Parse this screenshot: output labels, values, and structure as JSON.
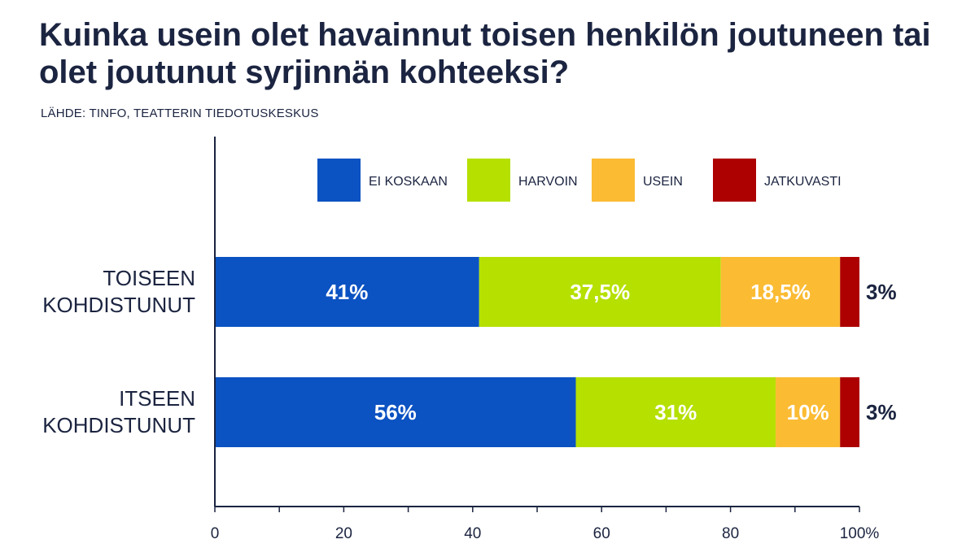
{
  "title": "Kuinka usein olet havainnut toisen henkilön joutuneen tai olet joutunut syrjinnän kohteeksi?",
  "source": "LÄHDE: TINFO, TEATTERIN TIEDOTUSKESKUS",
  "chart_data": {
    "type": "bar",
    "orientation": "horizontal",
    "stacked": true,
    "categories": [
      [
        "TOISEEN",
        "KOHDISTUNUT"
      ],
      [
        "ITSEEN",
        "KOHDISTUNUT"
      ]
    ],
    "series": [
      {
        "name": "EI KOSKAAN",
        "color": "#0b52c2",
        "values": [
          41,
          56
        ],
        "labels": [
          "41%",
          "56%"
        ]
      },
      {
        "name": "HARVOIN",
        "color": "#b5e000",
        "values": [
          37.5,
          31
        ],
        "labels": [
          "37,5%",
          "31%"
        ]
      },
      {
        "name": "USEIN",
        "color": "#fbbb33",
        "values": [
          18.5,
          10
        ],
        "labels": [
          "18,5%",
          "10%"
        ]
      },
      {
        "name": "JATKUVASTI",
        "color": "#ad0000",
        "values": [
          3,
          3
        ],
        "labels": [
          "3%",
          "3%"
        ]
      }
    ],
    "xlim": [
      0,
      100
    ],
    "xticks": [
      0,
      20,
      40,
      60,
      80,
      100
    ],
    "xtick_labels": [
      "0",
      "20",
      "40",
      "60",
      "80",
      "100%"
    ],
    "legend_position": "top",
    "grid": false
  }
}
